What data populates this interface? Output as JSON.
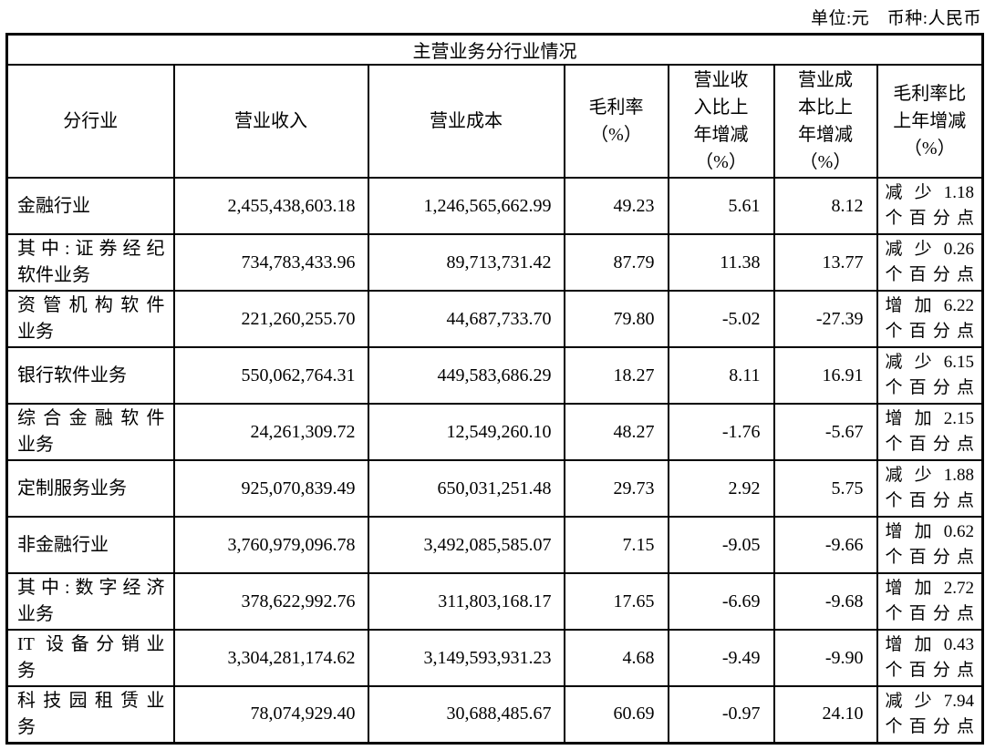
{
  "page": {
    "unit_label": "单位:元　币种:人民币"
  },
  "table": {
    "title": "主营业务分行业情况",
    "columns": [
      "分行业",
      "营业收入",
      "营业成本",
      "毛利率（%）",
      "营业收入比上年增减（%）",
      "营业成本比上年增减（%）",
      "毛利率比上年增减（%）"
    ],
    "rows": [
      {
        "label_lines": [
          "金融行业"
        ],
        "revenue": "2,455,438,603.18",
        "cost": "1,246,565,662.99",
        "margin": "49.23",
        "revenue_yoy": "5.61",
        "cost_yoy": "8.12",
        "margin_yoy_lines": [
          "减少1.18",
          "个百分点"
        ]
      },
      {
        "label_lines": [
          "其中:证券经纪",
          "软件业务"
        ],
        "revenue": "734,783,433.96",
        "cost": "89,713,731.42",
        "margin": "87.79",
        "revenue_yoy": "11.38",
        "cost_yoy": "13.77",
        "margin_yoy_lines": [
          "减少0.26",
          "个百分点"
        ]
      },
      {
        "label_lines": [
          "资管机构软件",
          "业务"
        ],
        "revenue": "221,260,255.70",
        "cost": "44,687,733.70",
        "margin": "79.80",
        "revenue_yoy": "-5.02",
        "cost_yoy": "-27.39",
        "margin_yoy_lines": [
          "增加6.22",
          "个百分点"
        ]
      },
      {
        "label_lines": [
          "银行软件业务"
        ],
        "revenue": "550,062,764.31",
        "cost": "449,583,686.29",
        "margin": "18.27",
        "revenue_yoy": "8.11",
        "cost_yoy": "16.91",
        "margin_yoy_lines": [
          "减少6.15",
          "个百分点"
        ]
      },
      {
        "label_lines": [
          "综合金融软件",
          "业务"
        ],
        "revenue": "24,261,309.72",
        "cost": "12,549,260.10",
        "margin": "48.27",
        "revenue_yoy": "-1.76",
        "cost_yoy": "-5.67",
        "margin_yoy_lines": [
          "增加2.15",
          "个百分点"
        ]
      },
      {
        "label_lines": [
          "定制服务业务"
        ],
        "revenue": "925,070,839.49",
        "cost": "650,031,251.48",
        "margin": "29.73",
        "revenue_yoy": "2.92",
        "cost_yoy": "5.75",
        "margin_yoy_lines": [
          "减少1.88",
          "个百分点"
        ]
      },
      {
        "label_lines": [
          "非金融行业"
        ],
        "revenue": "3,760,979,096.78",
        "cost": "3,492,085,585.07",
        "margin": "7.15",
        "revenue_yoy": "-9.05",
        "cost_yoy": "-9.66",
        "margin_yoy_lines": [
          "增加0.62",
          "个百分点"
        ]
      },
      {
        "label_lines": [
          "其中:数字经济",
          "业务"
        ],
        "revenue": "378,622,992.76",
        "cost": "311,803,168.17",
        "margin": "17.65",
        "revenue_yoy": "-6.69",
        "cost_yoy": "-9.68",
        "margin_yoy_lines": [
          "增加2.72",
          "个百分点"
        ]
      },
      {
        "label_lines": [
          "IT 设备分销业",
          "务"
        ],
        "revenue": "3,304,281,174.62",
        "cost": "3,149,593,931.23",
        "margin": "4.68",
        "revenue_yoy": "-9.49",
        "cost_yoy": "-9.90",
        "margin_yoy_lines": [
          "增加0.43",
          "个百分点"
        ]
      },
      {
        "label_lines": [
          "科技园租赁业",
          "务"
        ],
        "revenue": "78,074,929.40",
        "cost": "30,688,485.67",
        "margin": "60.69",
        "revenue_yoy": "-0.97",
        "cost_yoy": "24.10",
        "margin_yoy_lines": [
          "减少7.94",
          "个百分点"
        ]
      }
    ]
  }
}
